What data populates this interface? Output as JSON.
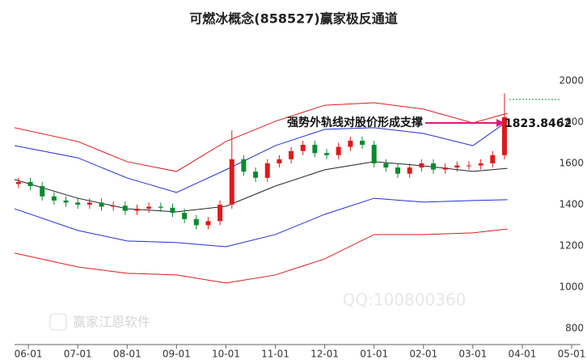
{
  "chart_data": {
    "type": "candlestick",
    "title": "可燃冰概念(858527)赢家极反通道",
    "annotation": "强势外轨线对股价形成支撑",
    "last_label": "1823.8462",
    "watermarks": [
      "赢家江恩软件",
      "QQ:100800360"
    ],
    "xlim": [
      -0.28,
      11.18
    ],
    "xticks": [
      {
        "value": 0,
        "label": "06-01"
      },
      {
        "value": 1,
        "label": "07-01"
      },
      {
        "value": 2,
        "label": "08-01"
      },
      {
        "value": 3,
        "label": "09-01"
      },
      {
        "value": 4,
        "label": "10-01"
      },
      {
        "value": 5,
        "label": "11-01"
      },
      {
        "value": 6,
        "label": "12-01"
      },
      {
        "value": 7,
        "label": "01-01"
      },
      {
        "value": 8,
        "label": "02-01"
      },
      {
        "value": 9,
        "label": "03-01"
      },
      {
        "value": 10,
        "label": "04-01"
      },
      {
        "value": 11,
        "label": "05-01"
      }
    ],
    "ylim": [
      745,
      2196
    ],
    "yticks": [
      800,
      1000,
      1200,
      1400,
      1600,
      1800,
      2000
    ],
    "up_color": "#e0191a",
    "down_color": "#0a8a2e",
    "candles": {
      "x": [
        -0.2,
        0.04,
        0.28,
        0.52,
        0.76,
        1,
        1.24,
        1.48,
        1.72,
        1.96,
        2.2,
        2.44,
        2.68,
        2.92,
        3.16,
        3.4,
        3.64,
        3.88,
        4.12,
        4.36,
        4.6,
        4.84,
        5.08,
        5.32,
        5.56,
        5.8,
        6.04,
        6.28,
        6.52,
        6.76,
        7,
        7.24,
        7.48,
        7.72,
        7.96,
        8.2,
        8.44,
        8.68,
        8.92,
        9.16,
        9.4,
        9.64
      ],
      "open": [
        1500,
        1510,
        1490,
        1440,
        1420,
        1410,
        1400,
        1410,
        1390,
        1395,
        1370,
        1380,
        1390,
        1385,
        1360,
        1330,
        1300,
        1320,
        1400,
        1620,
        1560,
        1530,
        1600,
        1620,
        1660,
        1690,
        1650,
        1640,
        1680,
        1710,
        1690,
        1600,
        1580,
        1550,
        1580,
        1600,
        1570,
        1580,
        1590,
        1590,
        1600,
        1640
      ],
      "high": [
        1530,
        1530,
        1510,
        1460,
        1440,
        1430,
        1430,
        1430,
        1415,
        1415,
        1400,
        1410,
        1410,
        1405,
        1380,
        1350,
        1340,
        1420,
        1760,
        1640,
        1580,
        1620,
        1640,
        1680,
        1710,
        1710,
        1670,
        1700,
        1730,
        1730,
        1710,
        1620,
        1600,
        1600,
        1620,
        1620,
        1600,
        1610,
        1610,
        1620,
        1660,
        1940
      ],
      "low": [
        1480,
        1470,
        1420,
        1400,
        1390,
        1380,
        1380,
        1370,
        1370,
        1350,
        1350,
        1360,
        1365,
        1340,
        1310,
        1280,
        1280,
        1300,
        1380,
        1540,
        1510,
        1510,
        1580,
        1600,
        1640,
        1630,
        1620,
        1620,
        1660,
        1670,
        1580,
        1560,
        1530,
        1530,
        1560,
        1550,
        1550,
        1560,
        1570,
        1570,
        1580,
        1620
      ],
      "close": [
        1510,
        1490,
        1440,
        1420,
        1410,
        1400,
        1410,
        1390,
        1395,
        1370,
        1380,
        1390,
        1385,
        1360,
        1330,
        1300,
        1320,
        1400,
        1620,
        1560,
        1530,
        1600,
        1620,
        1660,
        1690,
        1650,
        1640,
        1680,
        1710,
        1690,
        1600,
        1580,
        1550,
        1580,
        1600,
        1570,
        1580,
        1590,
        1590,
        1600,
        1640,
        1823.8462
      ]
    },
    "bands": {
      "x": [
        -0.28,
        1,
        2,
        3,
        4,
        5,
        6,
        7,
        8,
        9,
        9.7
      ],
      "series": [
        {
          "color": "#e0191a",
          "values": [
            1773,
            1706,
            1608,
            1561,
            1706,
            1804,
            1882,
            1894,
            1863,
            1796,
            1843
          ]
        },
        {
          "color": "#1f2fd6",
          "values": [
            1686,
            1627,
            1529,
            1459,
            1569,
            1686,
            1765,
            1773,
            1745,
            1686,
            1804
          ]
        },
        {
          "color": "#222222",
          "values": [
            1522,
            1431,
            1380,
            1365,
            1392,
            1490,
            1569,
            1608,
            1588,
            1561,
            1576
          ]
        },
        {
          "color": "#1f2fd6",
          "values": [
            1380,
            1275,
            1224,
            1216,
            1196,
            1255,
            1353,
            1431,
            1412,
            1420,
            1424
          ]
        },
        {
          "color": "#e0191a",
          "values": [
            1165,
            1098,
            1067,
            1059,
            1020,
            1059,
            1137,
            1255,
            1255,
            1263,
            1282
          ]
        }
      ]
    }
  }
}
